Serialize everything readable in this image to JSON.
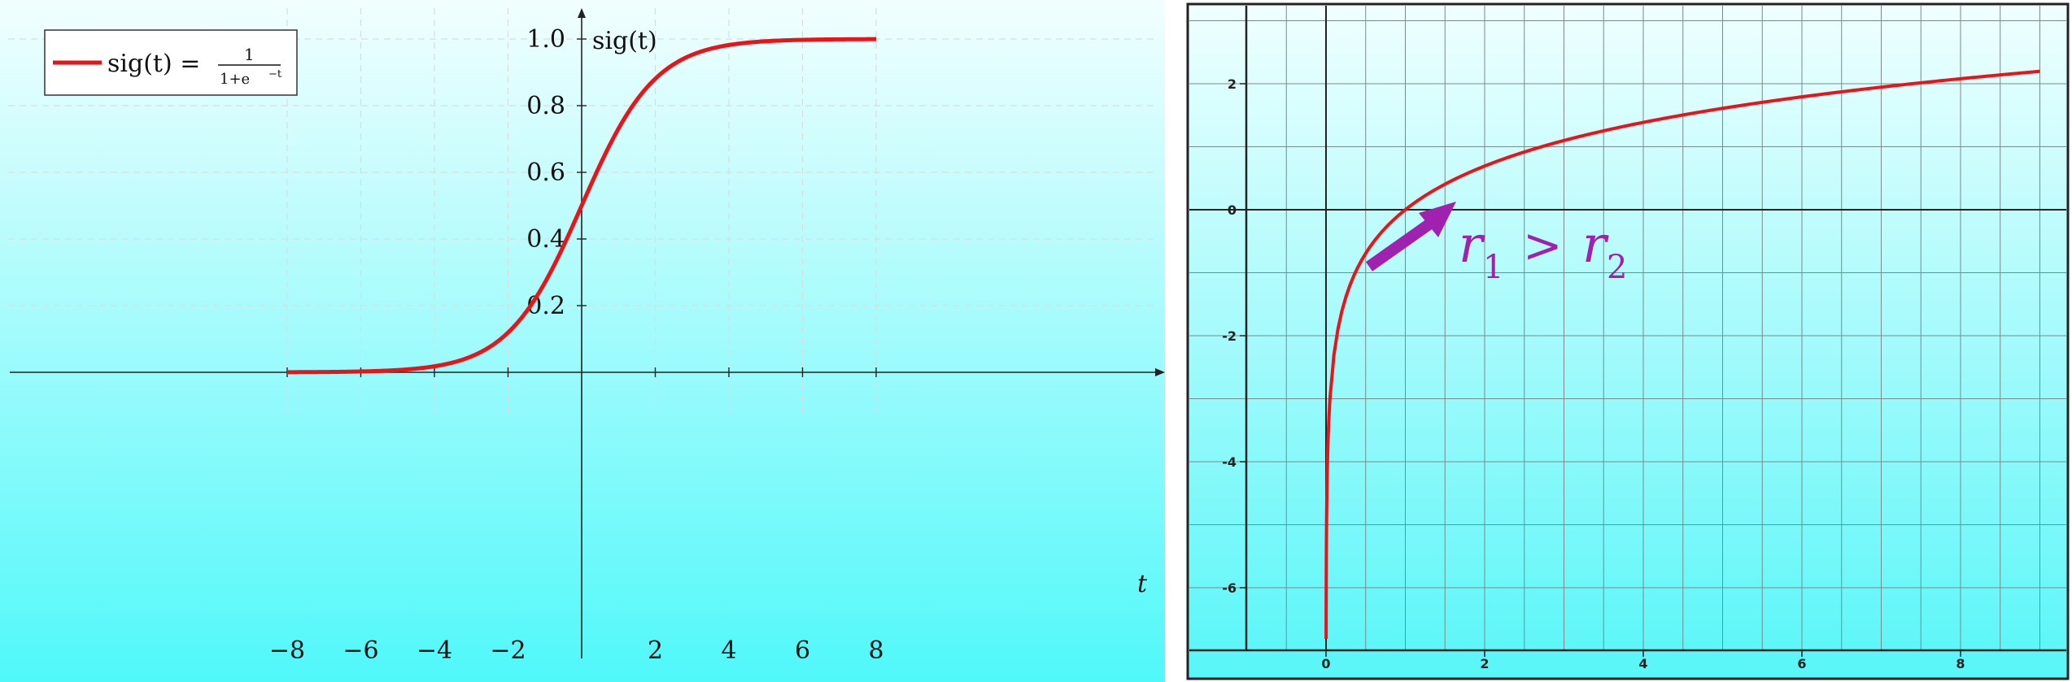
{
  "chart_data": [
    {
      "type": "line",
      "title": "",
      "xlabel": "t",
      "ylabel": "sig(t)",
      "xlim": [
        -9.6,
        9.6
      ],
      "ylim": [
        0,
        1.1
      ],
      "xticks": [
        -8,
        -6,
        -4,
        -2,
        2,
        4,
        6,
        8
      ],
      "yticks": [
        0.2,
        0.4,
        0.6,
        0.8,
        1.0
      ],
      "xtick_labels": [
        "−8",
        "−6",
        "−4",
        "−2",
        "2",
        "4",
        "6",
        "8"
      ],
      "ytick_labels": [
        "0.2",
        "0.4",
        "0.6",
        "0.8",
        "1.0"
      ],
      "grid": true,
      "legend_position": "top-left",
      "series": [
        {
          "name": "sig(t) = 1/(1+e^−t)",
          "color": "#e8141a",
          "x": [
            -8,
            -7,
            -6,
            -5,
            -4,
            -3,
            -2,
            -1,
            0,
            1,
            2,
            3,
            4,
            5,
            6,
            7,
            8
          ],
          "y": [
            0.0003,
            0.0009,
            0.0025,
            0.0067,
            0.018,
            0.047,
            0.119,
            0.269,
            0.5,
            0.731,
            0.881,
            0.953,
            0.982,
            0.993,
            0.998,
            0.999,
            1.0
          ]
        }
      ],
      "legend": {
        "lhs": "sig(t) =",
        "numerator": "1",
        "denominator": "1+e"
      }
    },
    {
      "type": "line",
      "title": "",
      "xlabel": "",
      "ylabel": "",
      "xlim": [
        -1,
        9.2
      ],
      "ylim": [
        -7,
        3
      ],
      "xticks": [
        0,
        2,
        4,
        6,
        8
      ],
      "yticks": [
        2,
        0,
        -2,
        -4,
        -6
      ],
      "xtick_labels": [
        "0",
        "2",
        "4",
        "6",
        "8"
      ],
      "ytick_labels": [
        "2",
        "0",
        "-2",
        "-4",
        "-6"
      ],
      "grid": true,
      "series": [
        {
          "name": "",
          "color": "#e8141a",
          "x": [
            0.001,
            0.05,
            0.1,
            0.25,
            0.5,
            1,
            1.5,
            2,
            3,
            4,
            5,
            6,
            7,
            8,
            9
          ],
          "y": [
            -6.91,
            -3.0,
            -2.3,
            -1.39,
            -0.69,
            0,
            0.41,
            0.69,
            1.1,
            1.39,
            1.61,
            1.79,
            1.95,
            2.08,
            2.2
          ]
        }
      ],
      "annotation": {
        "r1": "r",
        "sub1": "1",
        "gt": ">",
        "r2": "r",
        "sub2": "2",
        "color": "#a020b0"
      }
    }
  ]
}
